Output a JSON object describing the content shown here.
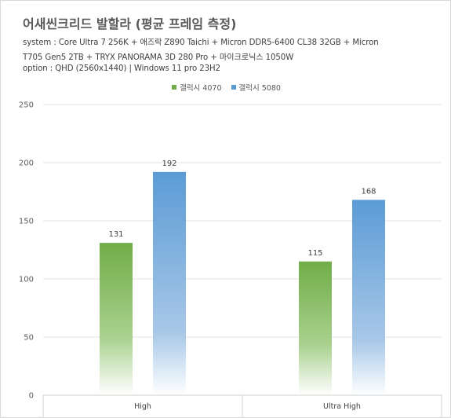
{
  "title": "어새씬크리드 발할라 (평균 프레임 측정)",
  "subtitle_lines": [
    "system : Core Ultra 7 256K + 애즈락 Z890 Taichi + Micron DDR5-6400 CL38 32GB + Micron",
    "T705 Gen5 2TB + TRYX PANORAMA 3D 280 Pro + 마이크로닉스 1050W",
    "option :  QHD (2560x1440) | Windows 11 pro 23H2"
  ],
  "colors": {
    "series_1": "#70ad47",
    "series_2": "#5b9bd5",
    "grid": "#e0e0e0",
    "text": "#595959"
  },
  "chart_data": {
    "type": "bar",
    "title": "어새씬크리드 발할라 (평균 프레임 측정)",
    "categories": [
      "High",
      "Ultra High"
    ],
    "series": [
      {
        "name": "갤럭시 4070",
        "values": [
          131,
          115
        ]
      },
      {
        "name": "갤럭시 5080",
        "values": [
          192,
          168
        ]
      }
    ],
    "y_ticks": [
      0,
      50,
      100,
      150,
      200,
      250
    ],
    "ylim": [
      0,
      250
    ],
    "grid": true,
    "legend_position": "top",
    "bar_fill": "gradient fading to white at the base"
  }
}
